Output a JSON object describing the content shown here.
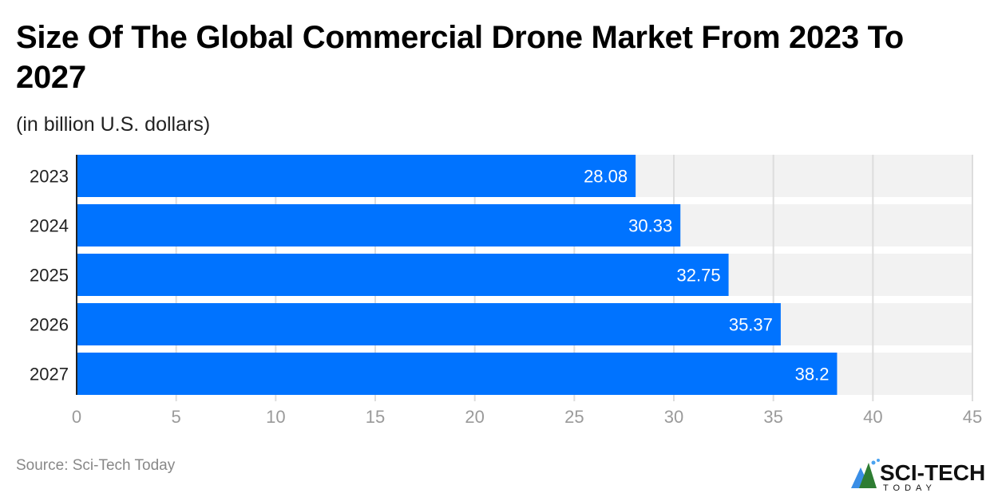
{
  "title": "Size Of The Global Commercial Drone Market From 2023 To 2027",
  "subtitle": "(in billion U.S. dollars)",
  "source": "Source: Sci-Tech Today",
  "logo": {
    "text": "SCI-TECH",
    "subtext": "TODAY"
  },
  "colors": {
    "bar": "#0073FF",
    "track": "#F2F2F2",
    "grid": "#DDDDDD",
    "tick": "#9A9A9A"
  },
  "chart_data": {
    "type": "bar",
    "orientation": "horizontal",
    "title": "Size Of The Global Commercial Drone Market From 2023 To 2027",
    "subtitle": "(in billion U.S. dollars)",
    "categories": [
      "2023",
      "2024",
      "2025",
      "2026",
      "2027"
    ],
    "values": [
      28.08,
      30.33,
      32.75,
      35.37,
      38.2
    ],
    "labels": [
      "28.08",
      "30.33",
      "32.75",
      "35.37",
      "38.2"
    ],
    "xlim": [
      0,
      45
    ],
    "xticks": [
      0,
      5,
      10,
      15,
      20,
      25,
      30,
      35,
      40,
      45
    ],
    "grid": true,
    "xlabel": "",
    "ylabel": ""
  }
}
